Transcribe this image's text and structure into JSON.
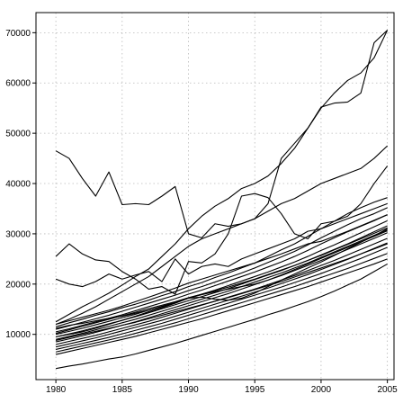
{
  "chart_data": {
    "type": "line",
    "title": "",
    "xlabel": "",
    "ylabel": "",
    "grid": true,
    "xlim": [
      1978.5,
      2005.5
    ],
    "ylim": [
      1000,
      74000
    ],
    "x_ticks": [
      1980,
      1985,
      1990,
      1995,
      2000,
      2005
    ],
    "x_tick_labels": [
      "1980",
      "1985",
      "1990",
      "1995",
      "2000",
      "2005"
    ],
    "y_ticks": [
      10000,
      20000,
      30000,
      40000,
      50000,
      60000,
      70000
    ],
    "y_tick_labels": [
      "10000",
      "20000",
      "30000",
      "40000",
      "50000",
      "60000",
      "70000"
    ],
    "x": [
      1980,
      1981,
      1982,
      1983,
      1984,
      1985,
      1986,
      1987,
      1988,
      1989,
      1990,
      1991,
      1992,
      1993,
      1994,
      1995,
      1996,
      1997,
      1998,
      1999,
      2000,
      2001,
      2002,
      2003,
      2004,
      2005
    ],
    "series": [
      {
        "values": [
          46500,
          45000,
          41000,
          37500,
          42300,
          35800,
          36000,
          35800,
          37500,
          39400,
          30000,
          29200,
          32000,
          31500,
          32000,
          33000,
          36000,
          45000,
          48000,
          51000,
          55200,
          56000,
          56200,
          58000,
          68000,
          70500
        ]
      },
      {
        "values": [
          25500,
          28000,
          26000,
          24800,
          24500,
          22500,
          21000,
          19000,
          19500,
          18000,
          24500,
          24200,
          26000,
          30000,
          37500,
          38000,
          37200,
          34000,
          30000,
          29000,
          32000,
          32500,
          33500,
          36000,
          40000,
          43500
        ]
      },
      {
        "values": [
          21000,
          20000,
          19500,
          20500,
          22000,
          21000,
          21800,
          22500,
          20500,
          25000,
          22000,
          23500,
          24000,
          23500,
          25000,
          26000,
          27000,
          28000,
          29000,
          30500,
          31000,
          32000,
          33000,
          34000,
          35000,
          36000
        ]
      },
      {
        "values": [
          12500,
          14000,
          15500,
          16800,
          18200,
          19800,
          21500,
          23000,
          25500,
          28000,
          31000,
          33500,
          35500,
          37000,
          39000,
          40000,
          41500,
          44000,
          47000,
          51000,
          55000,
          58000,
          60500,
          62000,
          65000,
          70500
        ]
      },
      {
        "values": [
          12000,
          13000,
          14200,
          15500,
          17000,
          18500,
          20000,
          21500,
          23500,
          25500,
          27500,
          29000,
          30000,
          31000,
          32000,
          33000,
          34500,
          36000,
          37000,
          38500,
          40000,
          41000,
          42000,
          43000,
          45000,
          47500
        ]
      },
      {
        "values": [
          11500,
          12300,
          13000,
          13800,
          14500,
          15300,
          16000,
          16800,
          17700,
          18500,
          19500,
          20300,
          21300,
          22200,
          23200,
          24200,
          25500,
          26800,
          28000,
          29500,
          31000,
          32500,
          34000,
          35200,
          36300,
          37200
        ]
      },
      {
        "values": [
          11000,
          11700,
          12400,
          13100,
          13800,
          14600,
          15400,
          16200,
          17000,
          17800,
          18700,
          19500,
          20400,
          21300,
          22200,
          23200,
          24300,
          25400,
          26500,
          27800,
          29200,
          30500,
          31800,
          33000,
          34000,
          35200
        ]
      },
      {
        "values": [
          10500,
          11100,
          11800,
          12500,
          13200,
          13900,
          14700,
          15500,
          16300,
          17100,
          18000,
          18800,
          19700,
          20600,
          21500,
          22400,
          23400,
          24400,
          25500,
          26700,
          28000,
          29200,
          30400,
          31500,
          32600,
          33800
        ]
      },
      {
        "values": [
          10000,
          10600,
          11200,
          11900,
          12600,
          13300,
          14000,
          14800,
          15600,
          16400,
          17200,
          18000,
          18800,
          19700,
          20600,
          21500,
          22400,
          23400,
          24400,
          25500,
          26700,
          27800,
          29000,
          30200,
          31400,
          32600
        ]
      },
      {
        "values": [
          9500,
          10100,
          10700,
          11400,
          12100,
          12800,
          13500,
          14300,
          15100,
          15900,
          16700,
          17500,
          18300,
          19100,
          20000,
          20900,
          21800,
          22700,
          23700,
          24700,
          25800,
          26900,
          28000,
          29200,
          30400,
          31600
        ]
      },
      {
        "values": [
          9000,
          9600,
          10200,
          10900,
          11600,
          12300,
          13000,
          13800,
          14600,
          15400,
          16200,
          17000,
          17800,
          18600,
          19500,
          20400,
          21300,
          22200,
          23200,
          24200,
          25300,
          26400,
          27500,
          28600,
          29700,
          30800
        ]
      },
      {
        "values": [
          8500,
          9100,
          9700,
          10400,
          11100,
          11800,
          12500,
          13300,
          14100,
          14900,
          15700,
          16500,
          17300,
          18100,
          19000,
          19900,
          20800,
          21700,
          22700,
          23700,
          24700,
          25800,
          26900,
          28000,
          29100,
          30200
        ]
      },
      {
        "values": [
          8000,
          8600,
          9200,
          9800,
          10500,
          11200,
          11900,
          12600,
          13400,
          14200,
          15000,
          15800,
          16600,
          17400,
          18200,
          19000,
          19900,
          20800,
          21700,
          22700,
          23700,
          24700,
          25800,
          26900,
          28000,
          29100
        ]
      },
      {
        "values": [
          7500,
          8100,
          8700,
          9300,
          10000,
          10700,
          11400,
          12100,
          12800,
          13600,
          14400,
          15200,
          16000,
          16800,
          17600,
          18400,
          19200,
          20100,
          21000,
          21900,
          22900,
          23900,
          24900,
          26000,
          27100,
          28200
        ]
      },
      {
        "values": [
          7000,
          7600,
          8200,
          8800,
          9400,
          10100,
          10800,
          11500,
          12200,
          13000,
          13800,
          14600,
          15400,
          16200,
          17000,
          17800,
          18600,
          19400,
          20300,
          21200,
          22100,
          23100,
          24100,
          25100,
          26200,
          27300
        ]
      },
      {
        "values": [
          6500,
          7100,
          7700,
          8300,
          8900,
          9500,
          10200,
          10900,
          11600,
          12300,
          13100,
          13900,
          14700,
          15500,
          16300,
          17100,
          17900,
          18700,
          19500,
          20400,
          21300,
          22200,
          23100,
          24100,
          25100,
          26100
        ]
      },
      {
        "values": [
          6000,
          6600,
          7200,
          7800,
          8400,
          9000,
          9600,
          10300,
          11000,
          11700,
          12400,
          13100,
          13900,
          14700,
          15500,
          16300,
          17100,
          17900,
          18700,
          19500,
          20400,
          21300,
          22200,
          23100,
          24000,
          25000
        ]
      },
      {
        "values": [
          3200,
          3700,
          4100,
          4600,
          5100,
          5500,
          6100,
          6800,
          7500,
          8200,
          9000,
          9800,
          10600,
          11400,
          12200,
          13000,
          13900,
          14700,
          15600,
          16500,
          17500,
          18600,
          19800,
          21000,
          22500,
          24000
        ]
      },
      {
        "values": [
          12000,
          12700,
          13400,
          14100,
          14800,
          15600,
          16500,
          17400,
          18300,
          19200,
          20200,
          21000,
          21800,
          22600,
          23400,
          24200,
          25100,
          26000,
          27000,
          28000,
          28500,
          29500,
          30500,
          31600,
          32700,
          33800
        ]
      },
      {
        "values": [
          9500,
          10000,
          10500,
          11200,
          12000,
          12800,
          13600,
          14500,
          15300,
          16200,
          17200,
          17900,
          18500,
          19000,
          19500,
          20000,
          20800,
          21800,
          22900,
          24000,
          25100,
          26200,
          27300,
          28400,
          29500,
          30600
        ]
      },
      {
        "values": [
          11200,
          11800,
          12200,
          12700,
          13200,
          13600,
          14200,
          14800,
          15500,
          16300,
          17200,
          17400,
          17000,
          16800,
          17200,
          18200,
          19500,
          20800,
          22000,
          23200,
          24400,
          25700,
          27000,
          28300,
          29600,
          31000
        ]
      },
      {
        "values": [
          10200,
          10900,
          11600,
          12300,
          13000,
          13700,
          14400,
          15100,
          15800,
          16500,
          17300,
          18000,
          18700,
          19400,
          20200,
          21000,
          21900,
          22800,
          23700,
          24700,
          25700,
          26800,
          27900,
          29000,
          30100,
          31200
        ]
      },
      {
        "values": [
          8800,
          9400,
          10000,
          10600,
          11200,
          11800,
          12400,
          13100,
          13800,
          14500,
          15200,
          15900,
          16600,
          17300,
          18100,
          18900,
          19700,
          20500,
          21400,
          22300,
          23200,
          24100,
          25000,
          26000,
          27000,
          28000
        ]
      }
    ]
  }
}
